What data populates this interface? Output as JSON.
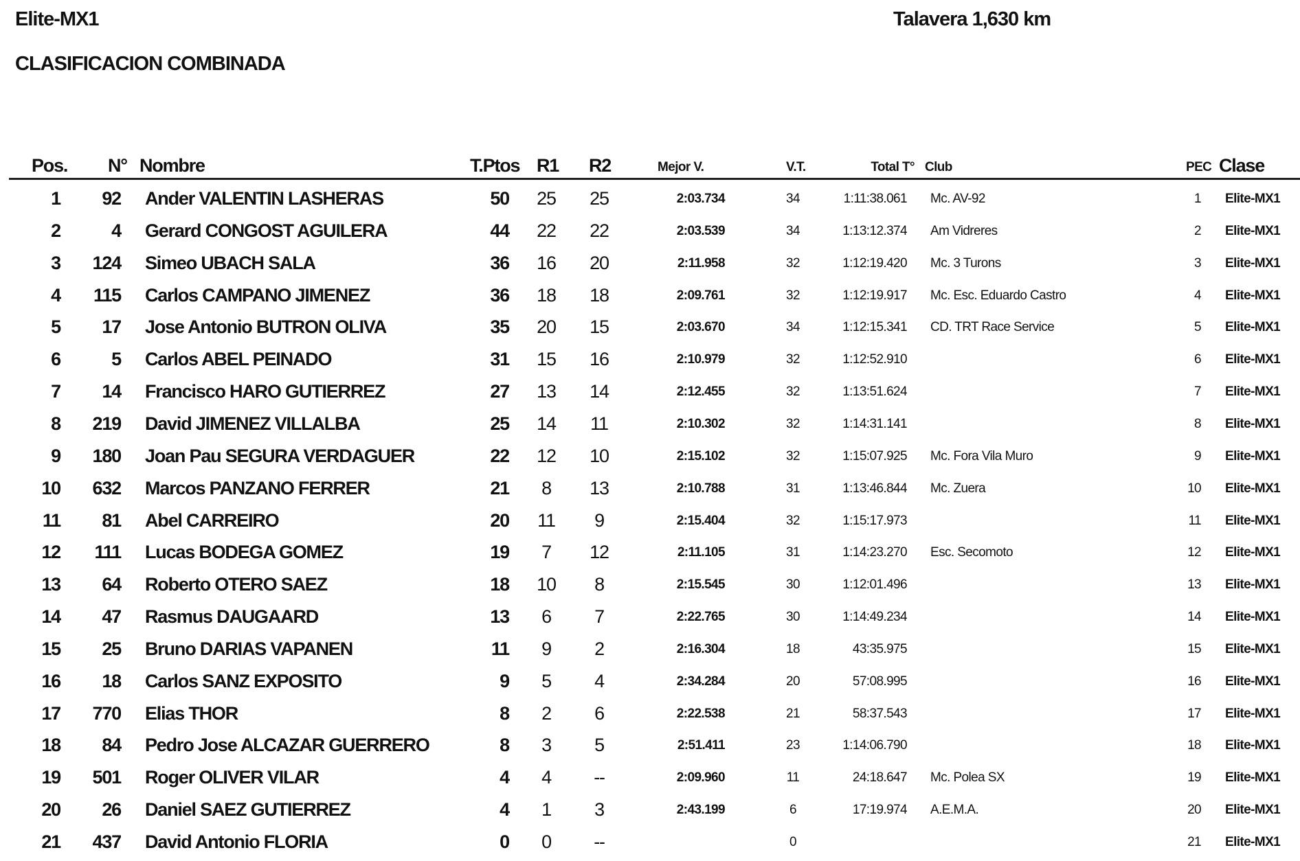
{
  "header": {
    "category": "Elite-MX1",
    "venue": "Talavera 1,630 km",
    "subtitle": "CLASIFICACION COMBINADA"
  },
  "columns": {
    "pos": "Pos.",
    "num": "N°",
    "name": "Nombre",
    "total_points": "T.Ptos",
    "r1": "R1",
    "r2": "R2",
    "best_lap": "Mejor V.",
    "laps": "V.T.",
    "total_time": "Total T°",
    "club": "Club",
    "pec": "PEC",
    "class": "Clase"
  },
  "rows": [
    {
      "pos": "1",
      "num": "92",
      "name": "Ander VALENTIN LASHERAS",
      "pts": "50",
      "r1": "25",
      "r2": "25",
      "best": "2:03.734",
      "vt": "34",
      "total": "1:11:38.061",
      "club": "Mc. AV-92",
      "pec": "1",
      "clase": "Elite-MX1"
    },
    {
      "pos": "2",
      "num": "4",
      "name": "Gerard CONGOST AGUILERA",
      "pts": "44",
      "r1": "22",
      "r2": "22",
      "best": "2:03.539",
      "vt": "34",
      "total": "1:13:12.374",
      "club": "Am Vidreres",
      "pec": "2",
      "clase": "Elite-MX1"
    },
    {
      "pos": "3",
      "num": "124",
      "name": "Simeo UBACH SALA",
      "pts": "36",
      "r1": "16",
      "r2": "20",
      "best": "2:11.958",
      "vt": "32",
      "total": "1:12:19.420",
      "club": "Mc. 3 Turons",
      "pec": "3",
      "clase": "Elite-MX1"
    },
    {
      "pos": "4",
      "num": "115",
      "name": "Carlos CAMPANO JIMENEZ",
      "pts": "36",
      "r1": "18",
      "r2": "18",
      "best": "2:09.761",
      "vt": "32",
      "total": "1:12:19.917",
      "club": "Mc. Esc. Eduardo Castro",
      "pec": "4",
      "clase": "Elite-MX1"
    },
    {
      "pos": "5",
      "num": "17",
      "name": "Jose Antonio BUTRON OLIVA",
      "pts": "35",
      "r1": "20",
      "r2": "15",
      "best": "2:03.670",
      "vt": "34",
      "total": "1:12:15.341",
      "club": "CD. TRT Race Service",
      "pec": "5",
      "clase": "Elite-MX1"
    },
    {
      "pos": "6",
      "num": "5",
      "name": "Carlos ABEL PEINADO",
      "pts": "31",
      "r1": "15",
      "r2": "16",
      "best": "2:10.979",
      "vt": "32",
      "total": "1:12:52.910",
      "club": "",
      "pec": "6",
      "clase": "Elite-MX1"
    },
    {
      "pos": "7",
      "num": "14",
      "name": "Francisco HARO GUTIERREZ",
      "pts": "27",
      "r1": "13",
      "r2": "14",
      "best": "2:12.455",
      "vt": "32",
      "total": "1:13:51.624",
      "club": "",
      "pec": "7",
      "clase": "Elite-MX1"
    },
    {
      "pos": "8",
      "num": "219",
      "name": "David JIMENEZ VILLALBA",
      "pts": "25",
      "r1": "14",
      "r2": "11",
      "best": "2:10.302",
      "vt": "32",
      "total": "1:14:31.141",
      "club": "",
      "pec": "8",
      "clase": "Elite-MX1"
    },
    {
      "pos": "9",
      "num": "180",
      "name": "Joan Pau SEGURA VERDAGUER",
      "pts": "22",
      "r1": "12",
      "r2": "10",
      "best": "2:15.102",
      "vt": "32",
      "total": "1:15:07.925",
      "club": "Mc. Fora Vila Muro",
      "pec": "9",
      "clase": "Elite-MX1"
    },
    {
      "pos": "10",
      "num": "632",
      "name": "Marcos PANZANO FERRER",
      "pts": "21",
      "r1": "8",
      "r2": "13",
      "best": "2:10.788",
      "vt": "31",
      "total": "1:13:46.844",
      "club": "Mc. Zuera",
      "pec": "10",
      "clase": "Elite-MX1"
    },
    {
      "pos": "11",
      "num": "81",
      "name": "Abel CARREIRO",
      "pts": "20",
      "r1": "11",
      "r2": "9",
      "best": "2:15.404",
      "vt": "32",
      "total": "1:15:17.973",
      "club": "",
      "pec": "11",
      "clase": "Elite-MX1"
    },
    {
      "pos": "12",
      "num": "111",
      "name": "Lucas BODEGA GOMEZ",
      "pts": "19",
      "r1": "7",
      "r2": "12",
      "best": "2:11.105",
      "vt": "31",
      "total": "1:14:23.270",
      "club": "Esc. Secomoto",
      "pec": "12",
      "clase": "Elite-MX1"
    },
    {
      "pos": "13",
      "num": "64",
      "name": "Roberto OTERO SAEZ",
      "pts": "18",
      "r1": "10",
      "r2": "8",
      "best": "2:15.545",
      "vt": "30",
      "total": "1:12:01.496",
      "club": "",
      "pec": "13",
      "clase": "Elite-MX1"
    },
    {
      "pos": "14",
      "num": "47",
      "name": "Rasmus DAUGAARD",
      "pts": "13",
      "r1": "6",
      "r2": "7",
      "best": "2:22.765",
      "vt": "30",
      "total": "1:14:49.234",
      "club": "",
      "pec": "14",
      "clase": "Elite-MX1"
    },
    {
      "pos": "15",
      "num": "25",
      "name": "Bruno DARIAS VAPANEN",
      "pts": "11",
      "r1": "9",
      "r2": "2",
      "best": "2:16.304",
      "vt": "18",
      "total": "43:35.975",
      "club": "",
      "pec": "15",
      "clase": "Elite-MX1"
    },
    {
      "pos": "16",
      "num": "18",
      "name": "Carlos SANZ EXPOSITO",
      "pts": "9",
      "r1": "5",
      "r2": "4",
      "best": "2:34.284",
      "vt": "20",
      "total": "57:08.995",
      "club": "",
      "pec": "16",
      "clase": "Elite-MX1"
    },
    {
      "pos": "17",
      "num": "770",
      "name": "Elias THOR",
      "pts": "8",
      "r1": "2",
      "r2": "6",
      "best": "2:22.538",
      "vt": "21",
      "total": "58:37.543",
      "club": "",
      "pec": "17",
      "clase": "Elite-MX1"
    },
    {
      "pos": "18",
      "num": "84",
      "name": "Pedro Jose ALCAZAR GUERRERO",
      "pts": "8",
      "r1": "3",
      "r2": "5",
      "best": "2:51.411",
      "vt": "23",
      "total": "1:14:06.790",
      "club": "",
      "pec": "18",
      "clase": "Elite-MX1"
    },
    {
      "pos": "19",
      "num": "501",
      "name": "Roger OLIVER VILAR",
      "pts": "4",
      "r1": "4",
      "r2": "--",
      "best": "2:09.960",
      "vt": "11",
      "total": "24:18.647",
      "club": "Mc. Polea SX",
      "pec": "19",
      "clase": "Elite-MX1"
    },
    {
      "pos": "20",
      "num": "26",
      "name": "Daniel SAEZ GUTIERREZ",
      "pts": "4",
      "r1": "1",
      "r2": "3",
      "best": "2:43.199",
      "vt": "6",
      "total": "17:19.974",
      "club": "A.E.M.A.",
      "pec": "20",
      "clase": "Elite-MX1"
    },
    {
      "pos": "21",
      "num": "437",
      "name": "David Antonio FLORIA",
      "pts": "0",
      "r1": "0",
      "r2": "--",
      "best": "",
      "vt": "0",
      "total": "",
      "club": "",
      "pec": "21",
      "clase": "Elite-MX1"
    }
  ]
}
